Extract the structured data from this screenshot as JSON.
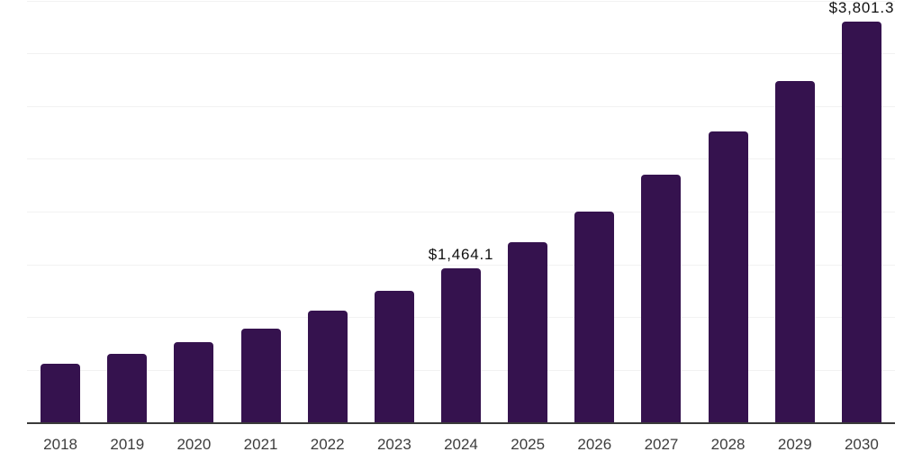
{
  "chart_data": {
    "type": "bar",
    "title": "",
    "xlabel": "",
    "ylabel": "",
    "categories": [
      "2018",
      "2019",
      "2020",
      "2021",
      "2022",
      "2023",
      "2024",
      "2025",
      "2026",
      "2027",
      "2028",
      "2029",
      "2030"
    ],
    "values": [
      565,
      655,
      765,
      900,
      1070,
      1255,
      1464.1,
      1717,
      2005,
      2355,
      2760,
      3240,
      3801.3
    ],
    "data_labels": [
      {
        "category": "2024",
        "text": "$1,464.1"
      },
      {
        "category": "2030",
        "text": "$3,801.3"
      }
    ],
    "ylim": [
      0,
      4000
    ],
    "grid_step": 500,
    "grid": true,
    "legend": false,
    "y_axis_labels_visible": false,
    "colors": {
      "bar": "#35124E",
      "gridline": "#F2F2F2",
      "axis_line": "#3A3A3A",
      "tick_label": "#3D3D3D",
      "data_label": "#111111",
      "background": "#FFFFFF"
    }
  }
}
